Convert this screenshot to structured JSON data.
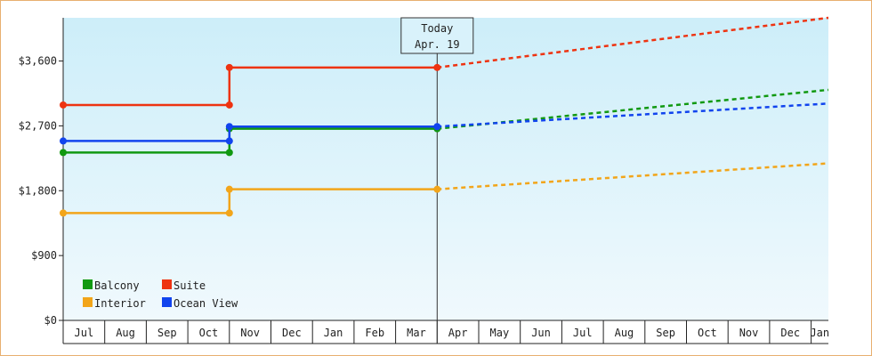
{
  "chart_data": {
    "type": "line",
    "title": "",
    "xlabel": "",
    "ylabel": "",
    "ylim": [
      0,
      4200
    ],
    "y_ticks": [
      {
        "value": 0,
        "label": "$0"
      },
      {
        "value": 900,
        "label": "$900"
      },
      {
        "value": 1800,
        "label": "$1,800"
      },
      {
        "value": 2700,
        "label": "$2,700"
      },
      {
        "value": 3600,
        "label": "$3,600"
      }
    ],
    "x_categories": [
      "Jul",
      "Aug",
      "Sep",
      "Oct",
      "Nov",
      "Dec",
      "Jan",
      "Feb",
      "Mar",
      "Apr",
      "May",
      "Jun",
      "Jul",
      "Aug",
      "Sep",
      "Oct",
      "Nov",
      "Dec",
      "Jan"
    ],
    "x_range_months": [
      0,
      18.5
    ],
    "step_points_x": [
      0,
      4,
      9
    ],
    "forecast_end_x": 18.5,
    "series": [
      {
        "name": "Balcony",
        "color": "#119911",
        "values": [
          2330,
          2660,
          2660
        ],
        "forecast_end": 3200
      },
      {
        "name": "Suite",
        "color": "#ee3311",
        "values": [
          2990,
          3510,
          3510
        ],
        "forecast_end": 4200
      },
      {
        "name": "Interior",
        "color": "#f2a51a",
        "values": [
          1490,
          1820,
          1820
        ],
        "forecast_end": 2180
      },
      {
        "name": "Ocean View",
        "color": "#1144ee",
        "values": [
          2490,
          2690,
          2690
        ],
        "forecast_end": 3010
      }
    ],
    "today_marker": {
      "x": 9,
      "line1": "Today",
      "line2": "Apr. 19"
    },
    "legend_position": "bottom-left",
    "grid": false,
    "background": {
      "top": "#cdeef9",
      "bottom": "#f0f9fd"
    },
    "axis_color": "#222222"
  }
}
